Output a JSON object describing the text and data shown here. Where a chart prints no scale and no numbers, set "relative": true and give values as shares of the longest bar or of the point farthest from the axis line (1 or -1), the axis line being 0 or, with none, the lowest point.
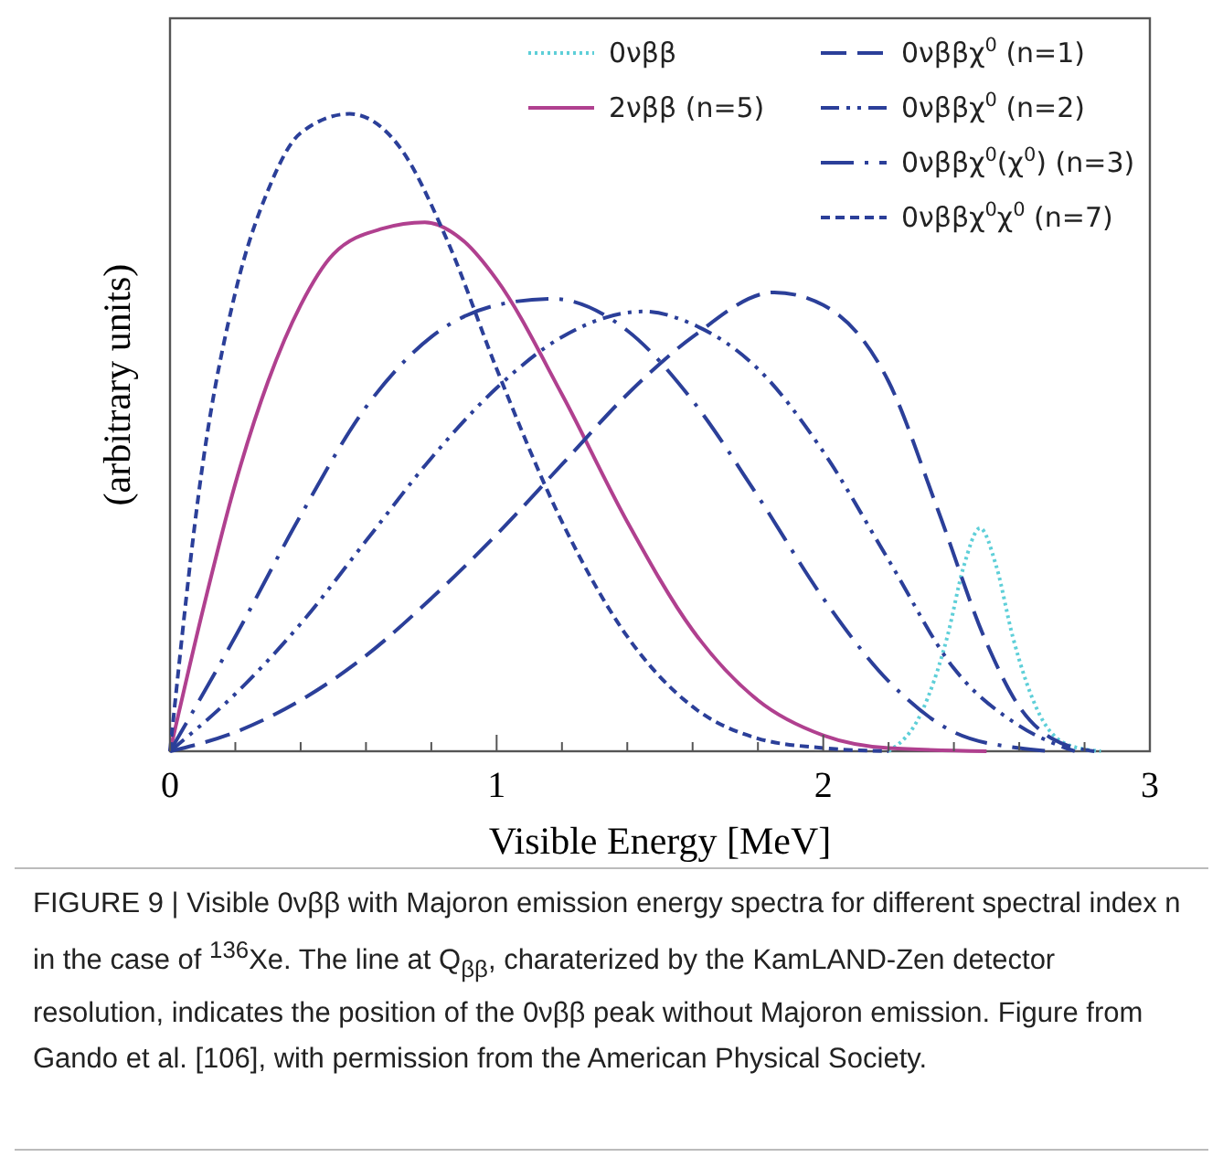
{
  "chart_data": {
    "type": "line",
    "relative": true,
    "xlabel": "Visible Energy [MeV]",
    "ylabel": "(arbitrary units)",
    "xlim": [
      0,
      3
    ],
    "xticks": [
      0,
      {
        "value": 0.2,
        "label": null
      },
      {
        "value": 0.4,
        "label": null
      },
      {
        "value": 0.6,
        "label": null
      },
      {
        "value": 0.8,
        "label": null
      },
      1,
      {
        "value": 1.2,
        "label": null
      },
      {
        "value": 1.4,
        "label": null
      },
      {
        "value": 1.6,
        "label": null
      },
      {
        "value": 1.8,
        "label": null
      },
      2,
      {
        "value": 2.2,
        "label": null
      },
      {
        "value": 2.4,
        "label": null
      },
      {
        "value": 2.6,
        "label": null
      },
      {
        "value": 2.8,
        "label": null
      },
      3
    ],
    "legend": "top right",
    "grid": false,
    "series": [
      {
        "name": "0νββ",
        "color": "#5ecfd8",
        "line_style": "dotted",
        "x": [
          2.2,
          2.3,
          2.38,
          2.43,
          2.48,
          2.53,
          2.58,
          2.66,
          2.75,
          2.85
        ],
        "values": [
          0,
          0.06,
          0.18,
          0.29,
          0.35,
          0.29,
          0.18,
          0.06,
          0.01,
          0
        ]
      },
      {
        "name": "2νββ (n=5)",
        "color": "#b0408f",
        "line_style": "solid",
        "x": [
          0,
          0.1,
          0.2,
          0.3,
          0.4,
          0.5,
          0.65,
          0.78,
          0.9,
          1.0,
          1.2,
          1.4,
          1.6,
          1.8,
          2.0,
          2.2,
          2.5
        ],
        "values": [
          0,
          0.22,
          0.42,
          0.58,
          0.7,
          0.78,
          0.82,
          0.83,
          0.8,
          0.74,
          0.56,
          0.36,
          0.19,
          0.08,
          0.025,
          0.005,
          0
        ]
      },
      {
        "name": "0νββχ$^{0}$ (n=1)",
        "color": "#2b3f99",
        "line_style": "dashed",
        "x": [
          0,
          0.2,
          0.4,
          0.6,
          0.8,
          1.0,
          1.2,
          1.4,
          1.6,
          1.85,
          2.0,
          2.2,
          2.35,
          2.5,
          2.6,
          2.7,
          2.83
        ],
        "values": [
          0,
          0.03,
          0.08,
          0.15,
          0.24,
          0.34,
          0.45,
          0.56,
          0.65,
          0.72,
          0.7,
          0.58,
          0.38,
          0.17,
          0.07,
          0.02,
          0
        ]
      },
      {
        "name": "0νββχ$^{0}$ (n=2)",
        "color": "#2b3f99",
        "line_style": "dashed",
        "x": [
          0,
          0.2,
          0.4,
          0.6,
          0.8,
          1.0,
          1.2,
          1.45,
          1.6,
          1.8,
          2.0,
          2.2,
          2.4,
          2.6,
          2.77
        ],
        "values": [
          0,
          0.09,
          0.2,
          0.33,
          0.46,
          0.57,
          0.65,
          0.69,
          0.67,
          0.6,
          0.47,
          0.3,
          0.13,
          0.04,
          0
        ]
      },
      {
        "name": "0νββχ$^{0}$(χ$^{0}$) (n=3)",
        "color": "#2b3f99",
        "line_style": "dashed",
        "x": [
          0,
          0.2,
          0.4,
          0.6,
          0.8,
          1.0,
          1.17,
          1.4,
          1.6,
          1.8,
          2.0,
          2.2,
          2.4,
          2.6,
          2.7
        ],
        "values": [
          0,
          0.18,
          0.37,
          0.54,
          0.65,
          0.7,
          0.71,
          0.66,
          0.55,
          0.4,
          0.24,
          0.11,
          0.03,
          0.005,
          0
        ]
      },
      {
        "name": "0νββχ$^{0}$χ$^{0}$ (n=7)",
        "color": "#2b3f99",
        "line_style": "dashed",
        "x": [
          0,
          0.1,
          0.2,
          0.3,
          0.4,
          0.55,
          0.7,
          0.85,
          1.0,
          1.2,
          1.4,
          1.6,
          1.8,
          2.0,
          2.2
        ],
        "values": [
          0,
          0.45,
          0.72,
          0.88,
          0.97,
          1.0,
          0.95,
          0.8,
          0.6,
          0.36,
          0.18,
          0.07,
          0.02,
          0.005,
          0
        ]
      }
    ],
    "annotations": [
      "FIGURE 9 | Visible 0νββ with Majoron emission energy spectra for different spectral index n in the case of $^{136}$Xe. The line at Q$_{ββ}$, charaterized by the KamLAND-Zen detector resolution, indicates the position of the 0νββ peak without Majoron emission. Figure from Gando et al. [106], with permission from the American Physical Society."
    ]
  }
}
